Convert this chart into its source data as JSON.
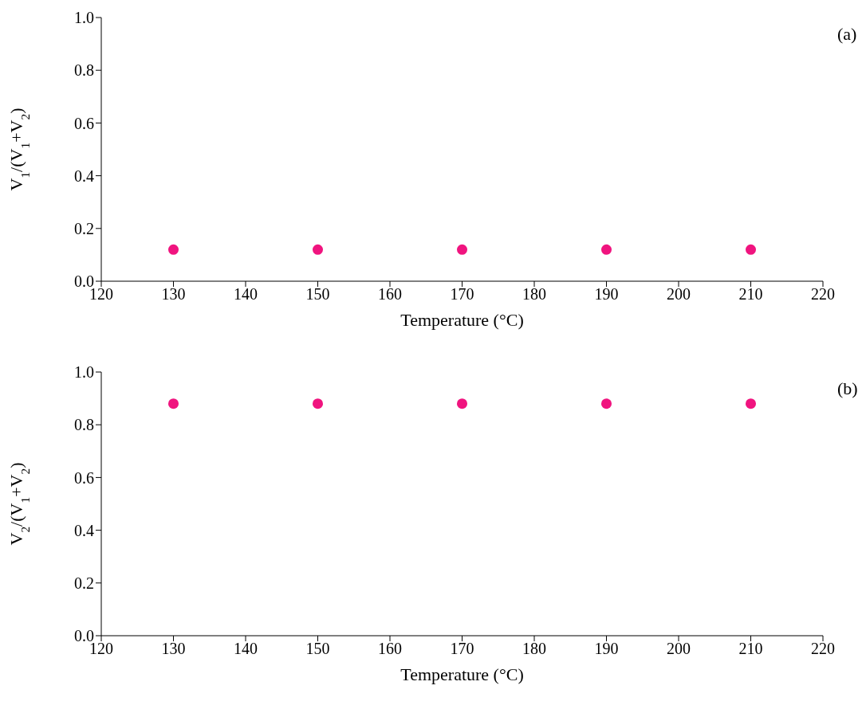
{
  "chart_data": [
    {
      "type": "scatter",
      "xlabel": "Temperature (°C)",
      "ylabel": "V$_{1}$/(V$_{1}$+V$_{2}$)",
      "annotations": [
        "(a)"
      ],
      "x": [
        130,
        150,
        170,
        190,
        210
      ],
      "series": [
        {
          "color": "#f0147f",
          "values": [
            0.12,
            0.12,
            0.12,
            0.12,
            0.12
          ]
        }
      ],
      "xlim": [
        120,
        220
      ],
      "xticks": [
        120,
        130,
        140,
        150,
        160,
        170,
        180,
        190,
        200,
        210,
        220
      ],
      "ylim": [
        0,
        1
      ],
      "yticks": [
        {
          "value": 0,
          "label": "0.0"
        },
        {
          "value": 0.2,
          "label": "0.2"
        },
        {
          "value": 0.4,
          "label": "0.4"
        },
        {
          "value": 0.6,
          "label": "0.6"
        },
        {
          "value": 0.8,
          "label": "0.8"
        },
        {
          "value": 1,
          "label": "1.0"
        }
      ],
      "marker": "circle"
    },
    {
      "type": "scatter",
      "xlabel": "Temperature (°C)",
      "ylabel": "V$_{2}$/(V$_{1}$+V$_{2}$)",
      "annotations": [
        "(b)"
      ],
      "x": [
        130,
        150,
        170,
        190,
        210
      ],
      "series": [
        {
          "color": "#f0147f",
          "values": [
            0.88,
            0.88,
            0.88,
            0.88,
            0.88
          ]
        }
      ],
      "xlim": [
        120,
        220
      ],
      "xticks": [
        120,
        130,
        140,
        150,
        160,
        170,
        180,
        190,
        200,
        210,
        220
      ],
      "ylim": [
        0,
        1
      ],
      "yticks": [
        {
          "value": 0,
          "label": "0.0"
        },
        {
          "value": 0.2,
          "label": "0.2"
        },
        {
          "value": 0.4,
          "label": "0.4"
        },
        {
          "value": 0.6,
          "label": "0.6"
        },
        {
          "value": 0.8,
          "label": "0.8"
        },
        {
          "value": 1,
          "label": "1.0"
        }
      ],
      "marker": "circle"
    }
  ]
}
